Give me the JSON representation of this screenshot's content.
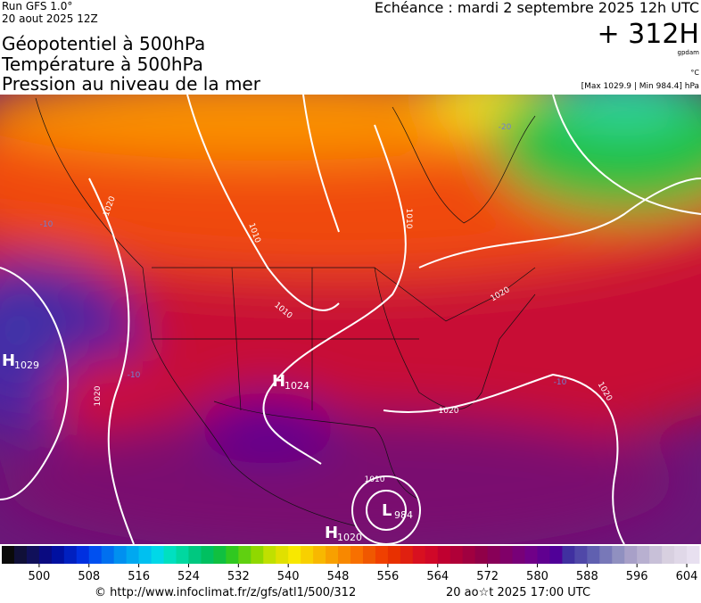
{
  "header": {
    "run": "Run GFS 1.0°",
    "run_date": "20 aout 2025 12Z",
    "titles": [
      "Géopotentiel à 500hPa",
      "Température à 500hPa",
      "Pression au niveau de la mer"
    ],
    "valid_time": "Echéance : mardi 2 septembre 2025 12h UTC",
    "lead": "+ 312H",
    "unit_geopotential": "gpdam",
    "unit_temperature": "°C",
    "pressure_range": "[Max 1029.9 | Min 984.4] hPa"
  },
  "pressure_centers": [
    {
      "type": "H",
      "value": 1029
    },
    {
      "type": "H",
      "value": 1024
    },
    {
      "type": "L",
      "value": 984
    },
    {
      "type": "H",
      "value": 1020
    }
  ],
  "isobar_labels": [
    1020,
    1010,
    1010,
    1010,
    1020,
    1020,
    1020,
    1020,
    1010
  ],
  "temperature_labels": [
    -10,
    -10,
    -10,
    -20
  ],
  "colorbar": {
    "range": [
      494,
      606
    ],
    "ticks": [
      500,
      508,
      516,
      524,
      532,
      540,
      548,
      556,
      564,
      572,
      580,
      588,
      596,
      604
    ],
    "colors": [
      "#0a0a0a",
      "#101038",
      "#10105a",
      "#0a0a80",
      "#0010a0",
      "#0020c0",
      "#0030e0",
      "#0050f0",
      "#0070f0",
      "#0090f0",
      "#00a8f0",
      "#00c0f0",
      "#00d8e8",
      "#00e0c0",
      "#00d8a0",
      "#00c880",
      "#00c060",
      "#10c040",
      "#30c820",
      "#60d010",
      "#90d800",
      "#c0e000",
      "#e0e000",
      "#f8e800",
      "#f8d000",
      "#f8b800",
      "#f8a000",
      "#f88800",
      "#f87000",
      "#f05800",
      "#f04000",
      "#e83000",
      "#e02010",
      "#d81020",
      "#d00828",
      "#c00030",
      "#b00038",
      "#a00040",
      "#900048",
      "#880058",
      "#800068",
      "#780078",
      "#700088",
      "#600090",
      "#500098",
      "#4030a0",
      "#5048a8",
      "#6060b0",
      "#7878b8",
      "#9090c0",
      "#a8a0c8",
      "#b8b0d0",
      "#c8c0d8",
      "#d8d0e0",
      "#e0d8e8",
      "#e8e0f0"
    ]
  },
  "footer": {
    "source": "© http://www.infoclimat.fr/z/gfs/atl1/500/312",
    "generated": "20 ao☆t 2025 17:00 UTC"
  }
}
